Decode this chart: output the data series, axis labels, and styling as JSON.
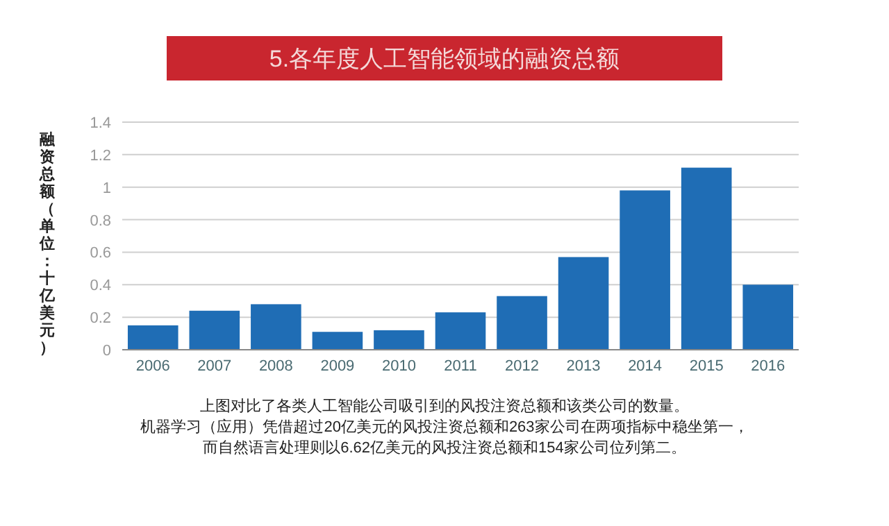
{
  "chart_data": {
    "type": "bar",
    "title": "5.各年度人工智能领域的融资总额",
    "ylabel": "融资总额（单位：十亿美元）",
    "categories": [
      "2006",
      "2007",
      "2008",
      "2009",
      "2010",
      "2011",
      "2012",
      "2013",
      "2014",
      "2015",
      "2016"
    ],
    "values": [
      0.15,
      0.24,
      0.28,
      0.11,
      0.12,
      0.23,
      0.33,
      0.57,
      0.98,
      1.12,
      0.4
    ],
    "color": "#1f6db5",
    "ylim": [
      0,
      1.4
    ],
    "yticks": [
      0,
      0.2,
      0.4,
      0.6,
      0.8,
      1,
      1.2,
      1.4
    ],
    "grid": "y",
    "annotations": [
      "上图对比了各类人工智能公司吸引到的风投注资总额和该类公司的数量。",
      "机器学习（应用）凭借超过20亿美元的风投注资总额和263家公司在两项指标中稳坐第一，",
      "而自然语言处理则以6.62亿美元的风投注资总额和154家公司位列第二。"
    ]
  }
}
